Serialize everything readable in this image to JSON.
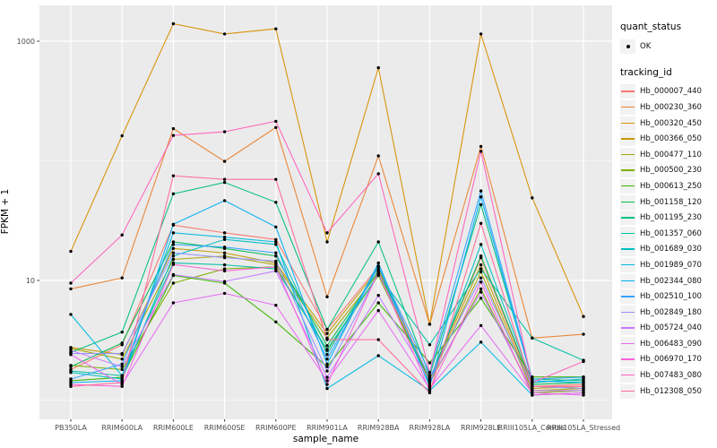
{
  "figure": {
    "background": "#FFFFFF",
    "panel_background": "#EBEBEB",
    "gridline_color": "#FFFFFF",
    "tick_label_color": "#4D4D4D",
    "point_color": "#000000"
  },
  "y_axis": {
    "title": "FPKM + 1",
    "tick_labels": [
      "1000",
      "10"
    ]
  },
  "x_axis": {
    "title": "sample_name"
  },
  "legend": {
    "quant_title": "quant_status",
    "quant_items": [
      {
        "label": "OK",
        "marker": "black-point"
      }
    ],
    "series_title": "tracking_id"
  },
  "chart_data": {
    "type": "line",
    "x_label": "sample_name",
    "y_label": "FPKM + 1",
    "y_scale": "log10",
    "y_ticks": [
      10,
      1000
    ],
    "y_minor_ticks": [
      1,
      100
    ],
    "ylim": [
      0.69,
      2000
    ],
    "grid": true,
    "legend_position": "right",
    "point_marker": {
      "label": "OK",
      "color": "#000000"
    },
    "categories": [
      "PB350LA",
      "RRIM600LA",
      "RRIM600LE",
      "RRIM600SE",
      "RRIM600PE",
      "RRIM901LA",
      "RRIM928BA",
      "RRIM928LA",
      "RRIM928LE",
      "RRIII105LA_Control",
      "RRIII105LA_Stressed"
    ],
    "series": [
      {
        "name": "Hb_000007_440",
        "color": "#F8766D",
        "values": [
          1.8,
          2.9,
          29,
          25,
          22,
          3.9,
          13,
          1.5,
          15.5,
          1.3,
          1.35
        ]
      },
      {
        "name": "Hb_000230_360",
        "color": "#EA8331",
        "values": [
          8.5,
          10.5,
          186,
          99,
          190,
          7.3,
          110,
          4.3,
          132,
          3.3,
          3.55
        ]
      },
      {
        "name": "Hb_000320_450",
        "color": "#D89000",
        "values": [
          17.5,
          162,
          1400,
          1150,
          1270,
          21,
          600,
          4.3,
          1150,
          49,
          5.0
        ]
      },
      {
        "name": "Hb_000366_050",
        "color": "#C09B00",
        "values": [
          2.75,
          2.4,
          18.5,
          17,
          14,
          3.6,
          12.5,
          1.5,
          13.5,
          1.25,
          1.3
        ]
      },
      {
        "name": "Hb_000477_110",
        "color": "#A3A500",
        "values": [
          2.7,
          2.2,
          15,
          16,
          13.5,
          3.3,
          11.5,
          1.45,
          11.8,
          1.2,
          1.25
        ]
      },
      {
        "name": "Hb_000500_230",
        "color": "#7CAE00",
        "values": [
          1.95,
          1.8,
          9.5,
          12.5,
          13,
          2.6,
          11,
          1.4,
          8.5,
          1.15,
          1.2
        ]
      },
      {
        "name": "Hb_000613_250",
        "color": "#39B600",
        "values": [
          1.45,
          1.55,
          11,
          9.5,
          4.5,
          1.9,
          6.5,
          2.05,
          7.1,
          1.56,
          1.56
        ]
      },
      {
        "name": "Hb_001158_120",
        "color": "#00BB4E",
        "values": [
          1.9,
          3.0,
          21,
          18.5,
          16,
          2.85,
          12,
          1.5,
          16,
          1.35,
          1.4
        ]
      },
      {
        "name": "Hb_001195_230",
        "color": "#00BF7D",
        "values": [
          2.5,
          3.7,
          53,
          66,
          45,
          3.9,
          21,
          1.6,
          43,
          1.5,
          1.45
        ]
      },
      {
        "name": "Hb_001357_060",
        "color": "#00C1A3",
        "values": [
          1.75,
          1.6,
          14,
          13.5,
          12.5,
          2.65,
          11.2,
          2.9,
          12.5,
          3.3,
          2.15
        ]
      },
      {
        "name": "Hb_001689_030",
        "color": "#00BFC4",
        "values": [
          1.7,
          1.5,
          16,
          22,
          20,
          2.4,
          13.2,
          1.35,
          20,
          1.4,
          1.5
        ]
      },
      {
        "name": "Hb_001989_070",
        "color": "#00BAE0",
        "values": [
          5.2,
          1.6,
          25,
          23,
          21,
          1.25,
          2.35,
          1.2,
          3.05,
          1.1,
          1.15
        ]
      },
      {
        "name": "Hb_002344_080",
        "color": "#00B0F6",
        "values": [
          1.4,
          1.45,
          29.5,
          46.5,
          28,
          2.0,
          14,
          1.3,
          50,
          1.45,
          1.4
        ]
      },
      {
        "name": "Hb_002510_100",
        "color": "#35A2FF",
        "values": [
          1.5,
          2.0,
          20,
          19,
          17,
          2.2,
          13,
          1.7,
          56,
          1.5,
          1.55
        ]
      },
      {
        "name": "Hb_002849_180",
        "color": "#9590FF",
        "values": [
          2.45,
          2.45,
          17,
          15.5,
          14.5,
          1.75,
          11.5,
          1.55,
          10.5,
          1.3,
          1.25
        ]
      },
      {
        "name": "Hb_005724_040",
        "color": "#C77CFF",
        "values": [
          2.6,
          1.9,
          11.2,
          9.8,
          12,
          1.55,
          7.5,
          1.45,
          8.0,
          1.2,
          1.2
        ]
      },
      {
        "name": "Hb_006483_090",
        "color": "#E76BF3",
        "values": [
          2.4,
          1.35,
          6.5,
          7.8,
          6.2,
          1.45,
          5.6,
          1.25,
          4.2,
          1.15,
          1.1
        ]
      },
      {
        "name": "Hb_006970_170",
        "color": "#FA62DB",
        "values": [
          1.35,
          1.3,
          13.6,
          12,
          13,
          1.35,
          11.8,
          1.2,
          9.7,
          1.1,
          1.15
        ]
      },
      {
        "name": "Hb_007483_080",
        "color": "#FF62BC",
        "values": [
          9.5,
          24,
          163,
          175,
          214,
          25,
          78,
          1.7,
          120,
          1.4,
          2.1
        ]
      },
      {
        "name": "Hb_012308_050",
        "color": "#FF6A98",
        "values": [
          1.3,
          1.4,
          75,
          70,
          70,
          3.2,
          3.2,
          1.15,
          30,
          1.3,
          1.3
        ]
      }
    ]
  }
}
